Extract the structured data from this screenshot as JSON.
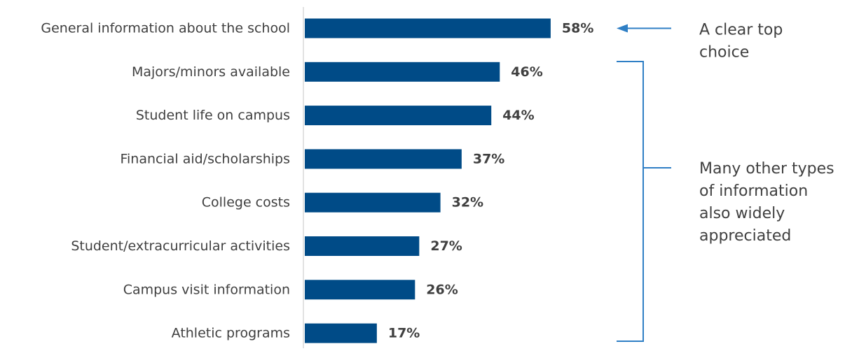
{
  "chart_data": {
    "type": "bar",
    "orientation": "horizontal",
    "categories": [
      "General information about the school",
      "Majors/minors available",
      "Student life on campus",
      "Financial aid/scholarships",
      "College costs",
      "Student/extracurricular activities",
      "Campus visit information",
      "Athletic programs"
    ],
    "values": [
      58,
      46,
      44,
      37,
      32,
      27,
      26,
      17
    ],
    "value_labels": [
      "58%",
      "46%",
      "44%",
      "37%",
      "32%",
      "27%",
      "26%",
      "17%"
    ],
    "value_suffix": "%",
    "xlim": [
      0,
      100
    ],
    "bar_color": "#004B87",
    "grid": false,
    "annotations": [
      {
        "text_lines": [
          "A clear top",
          "choice"
        ],
        "target": "General information about the school",
        "style": "arrow",
        "color": "#2F7FC5"
      },
      {
        "text_lines": [
          "Many other types",
          "of information",
          "also widely",
          "appreciated"
        ],
        "targets": [
          "Majors/minors available",
          "Student life on campus",
          "Financial aid/scholarships",
          "College costs",
          "Student/extracurricular activities",
          "Campus visit information",
          "Athletic programs"
        ],
        "style": "bracket",
        "color": "#2F7FC5"
      }
    ]
  }
}
